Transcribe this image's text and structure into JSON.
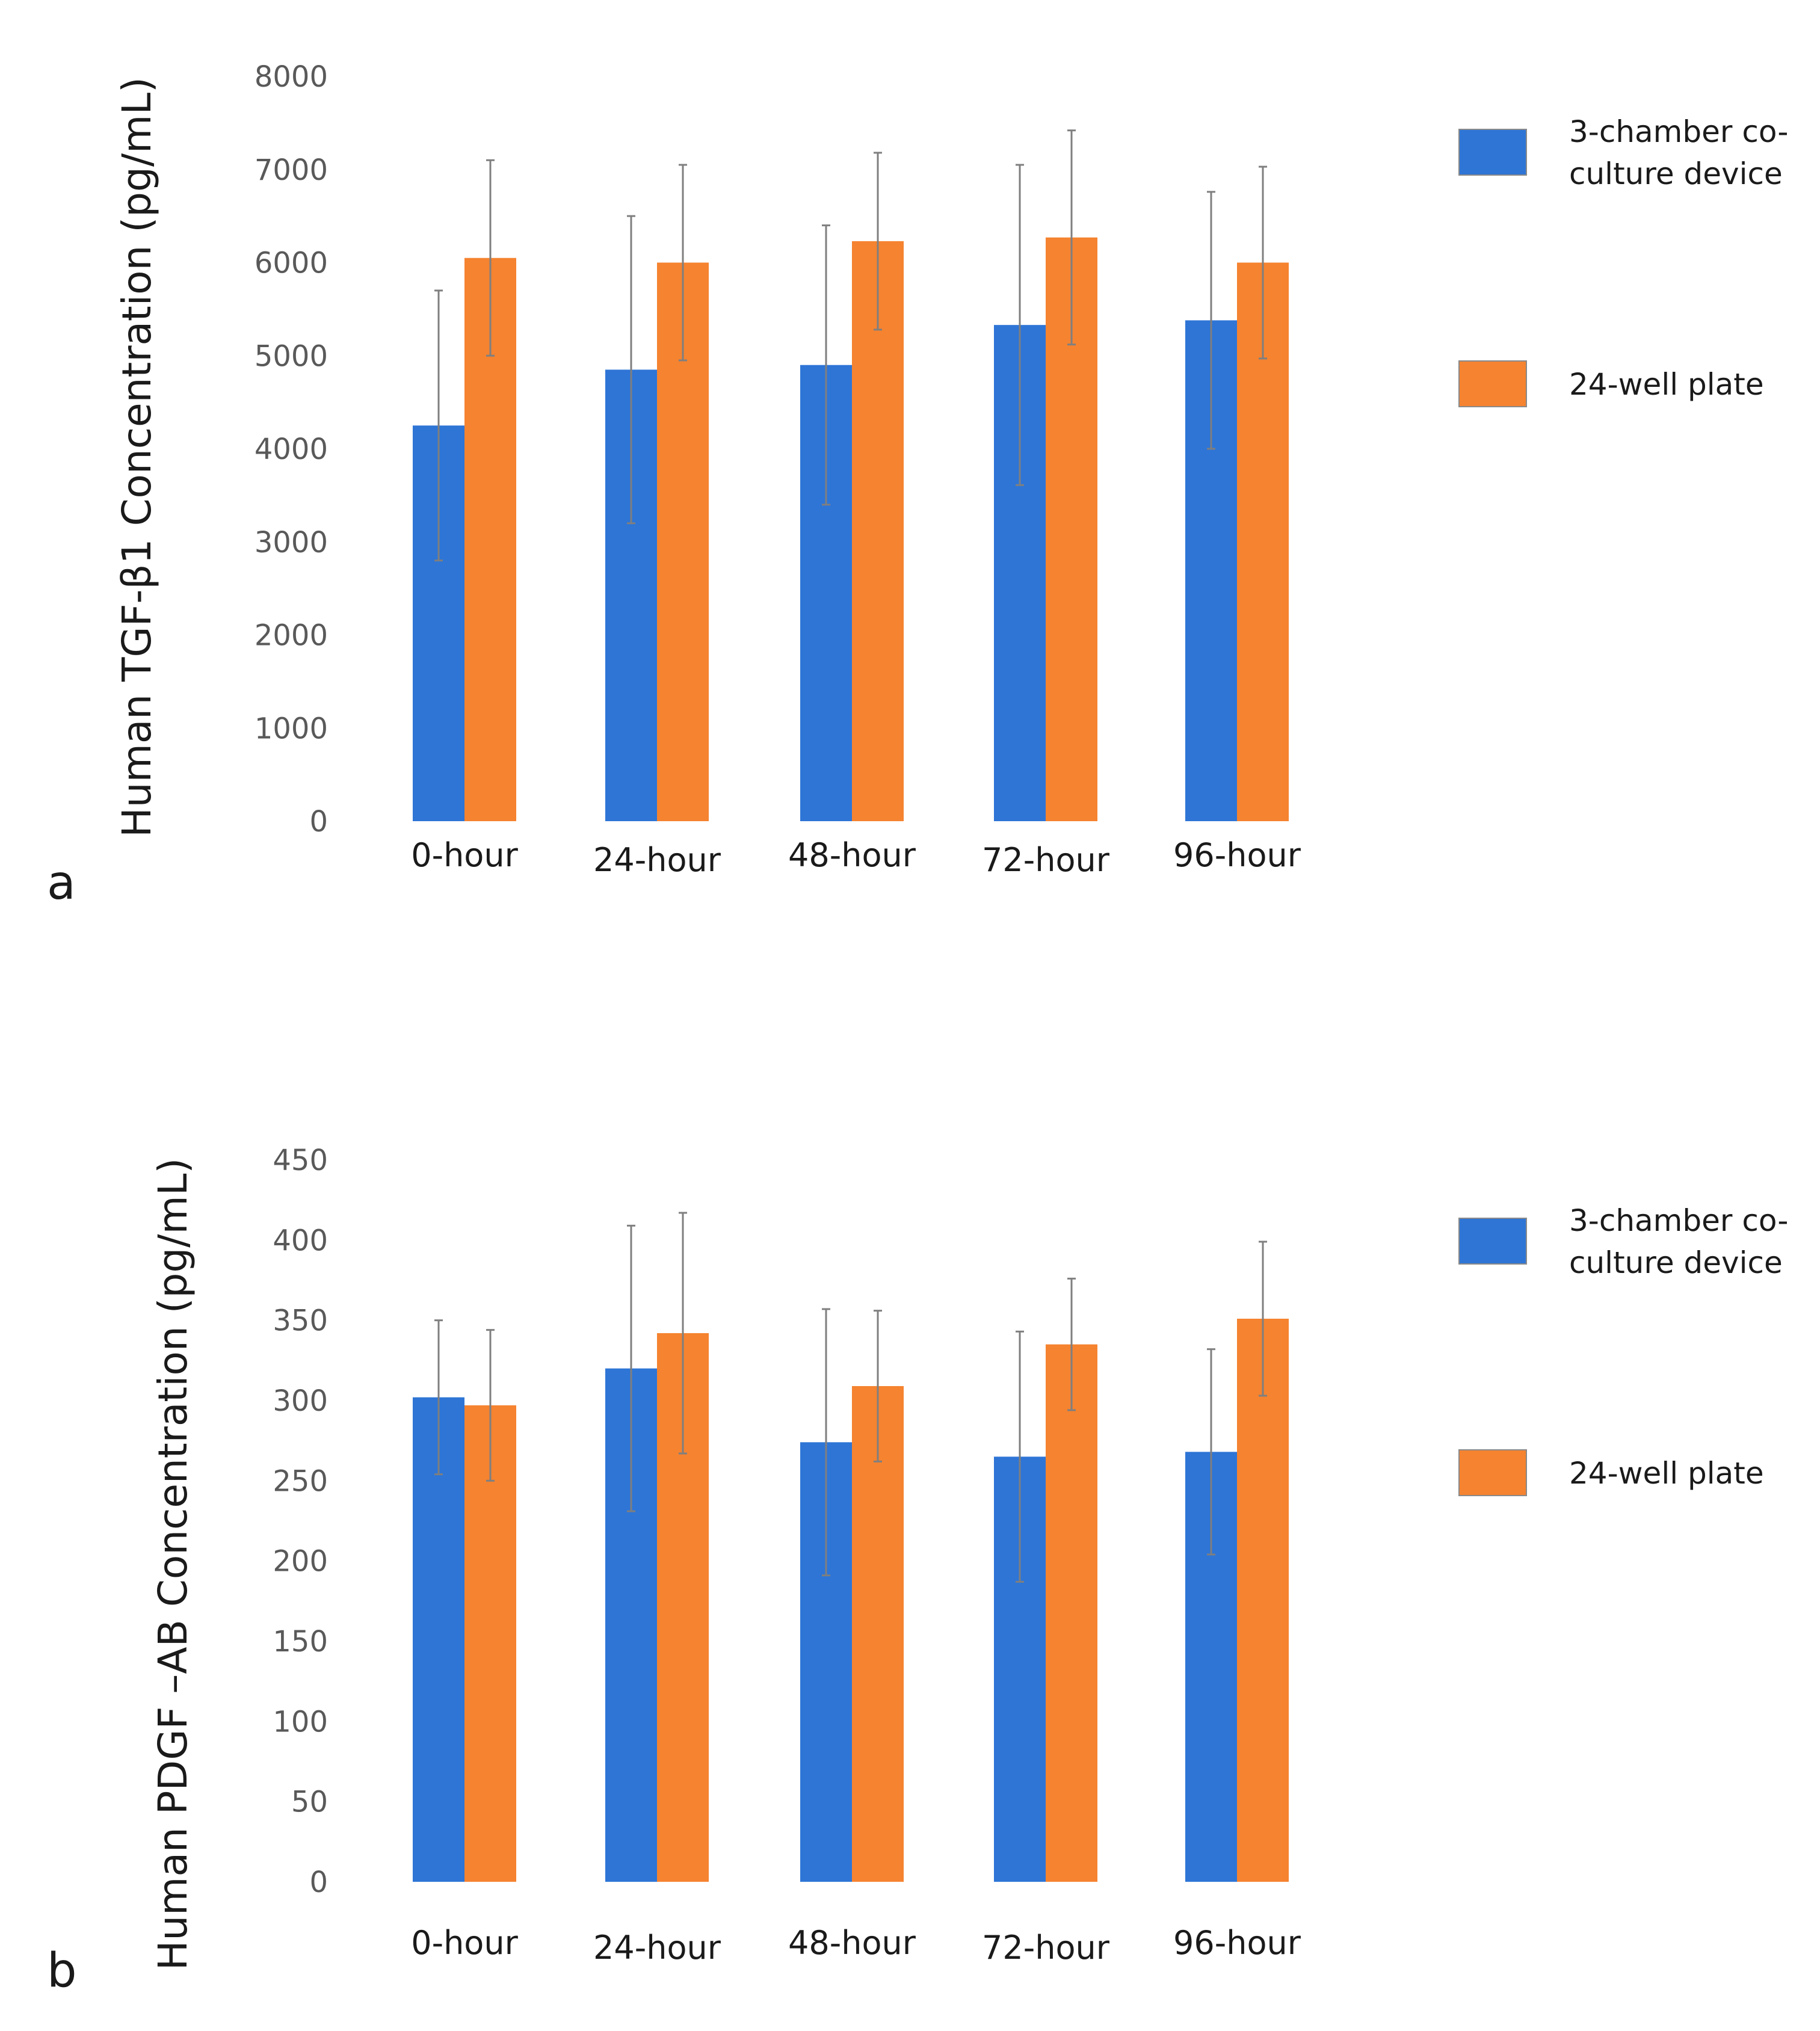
{
  "chart_data": [
    {
      "type": "bar",
      "panel_label": "a",
      "ylabel": "Human TGF-β1 Concentration (pg/mL)",
      "xlabel": "",
      "ylim": [
        0,
        8000
      ],
      "yticks": [
        0,
        1000,
        2000,
        3000,
        4000,
        5000,
        6000,
        7000,
        8000
      ],
      "categories": [
        "0-hour",
        "24-hour",
        "48-hour",
        "72-hour",
        "96-hour"
      ],
      "series": [
        {
          "name": "3-chamber co-culture device",
          "legend_lines": [
            "3-chamber co-",
            "culture device"
          ],
          "color": "#2e75d6",
          "values": [
            4250,
            4850,
            4900,
            5330,
            5380
          ],
          "errors": [
            1450,
            1650,
            1500,
            1720,
            1380
          ]
        },
        {
          "name": "24-well plate",
          "legend_lines": [
            "24-well plate"
          ],
          "color": "#f58330",
          "values": [
            6050,
            6000,
            6230,
            6270,
            6000
          ],
          "errors": [
            1050,
            1050,
            950,
            1150,
            1030
          ]
        }
      ]
    },
    {
      "type": "bar",
      "panel_label": "b",
      "ylabel": "Human PDGF –AB Concentration (pg/mL)",
      "xlabel": "",
      "ylim": [
        0,
        450
      ],
      "yticks": [
        0,
        50,
        100,
        150,
        200,
        250,
        300,
        350,
        400,
        450
      ],
      "categories": [
        "0-hour",
        "24-hour",
        "48-hour",
        "72-hour",
        "96-hour"
      ],
      "series": [
        {
          "name": "3-chamber co-culture device",
          "legend_lines": [
            "3-chamber co-",
            "culture device"
          ],
          "color": "#2e75d6",
          "values": [
            302,
            320,
            274,
            265,
            268
          ],
          "errors": [
            48,
            89,
            83,
            78,
            64
          ]
        },
        {
          "name": "24-well plate",
          "legend_lines": [
            "24-well plate"
          ],
          "color": "#f58330",
          "values": [
            297,
            342,
            309,
            335,
            351
          ],
          "errors": [
            47,
            75,
            47,
            41,
            48
          ]
        }
      ]
    }
  ]
}
